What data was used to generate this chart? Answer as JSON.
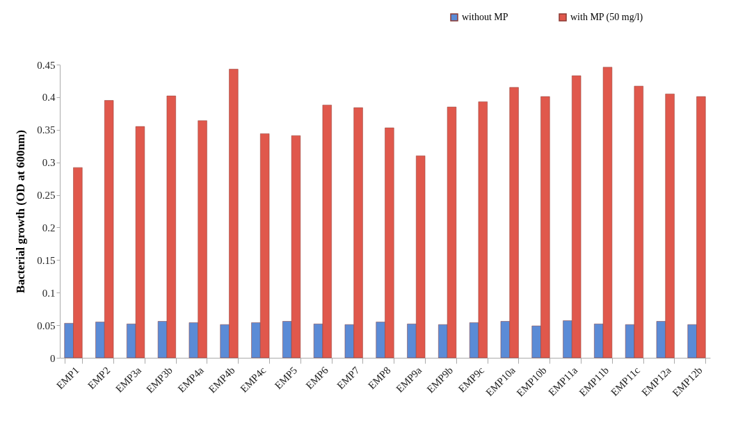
{
  "chart_data": {
    "type": "bar",
    "ylabel": "Bacterial growth (OD at 600nm)",
    "categories": [
      "EMP1",
      "EMP2",
      "EMP3a",
      "EMP3b",
      "EMP4a",
      "EMP4b",
      "EMP4c",
      "EMP5",
      "EMP6",
      "EMP7",
      "EMP8",
      "EMP9a",
      "EMP9b",
      "EMP9c",
      "EMP10a",
      "EMP10b",
      "EMP11a",
      "EMP11b",
      "EMP11c",
      "EMP12a",
      "EMP12b"
    ],
    "series": [
      {
        "name": "without MP",
        "color": "#5b8bd6",
        "values": [
          0.053,
          0.055,
          0.052,
          0.056,
          0.054,
          0.051,
          0.054,
          0.056,
          0.052,
          0.051,
          0.055,
          0.052,
          0.051,
          0.054,
          0.056,
          0.049,
          0.057,
          0.052,
          0.051,
          0.056,
          0.051
        ]
      },
      {
        "name": "with MP (50 mg/l)",
        "color": "#e0584c",
        "values": [
          0.292,
          0.395,
          0.355,
          0.402,
          0.364,
          0.443,
          0.344,
          0.341,
          0.388,
          0.384,
          0.353,
          0.31,
          0.385,
          0.393,
          0.415,
          0.401,
          0.433,
          0.446,
          0.417,
          0.405,
          0.401
        ]
      }
    ],
    "ylim": [
      0,
      0.45
    ],
    "yticks": [
      0,
      0.05,
      0.1,
      0.15,
      0.2,
      0.25,
      0.3,
      0.35,
      0.4,
      0.45
    ],
    "grid": false,
    "legend": "top right"
  }
}
